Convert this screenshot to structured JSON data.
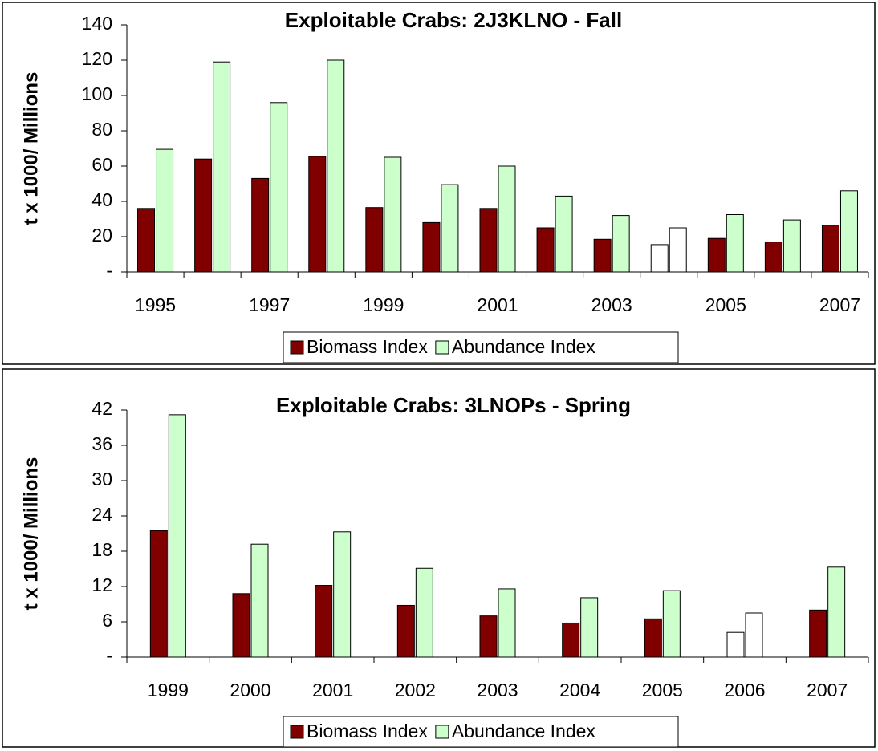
{
  "chart_data": [
    {
      "type": "bar",
      "title": "Exploitable Crabs:  2J3KLNO - Fall",
      "y_label": "t x 1000/ Millions",
      "categories": [
        "1995",
        null,
        "1997",
        null,
        "1999",
        null,
        "2001",
        null,
        "2003",
        null,
        "2005",
        null,
        "2007"
      ],
      "series": [
        {
          "name": "Biomass Index",
          "color": "#800000",
          "bar_colors": [
            "#800000",
            "#800000",
            "#800000",
            "#800000",
            "#800000",
            "#800000",
            "#800000",
            "#800000",
            "#800000",
            "#ffffff",
            "#800000",
            "#800000",
            "#800000"
          ],
          "values": [
            36,
            64,
            53,
            65.5,
            36.5,
            28,
            36,
            25,
            18.5,
            15.5,
            19,
            17,
            26.5
          ]
        },
        {
          "name": "Abundance Index",
          "color": "#ccffcc",
          "bar_colors": [
            "#ccffcc",
            "#ccffcc",
            "#ccffcc",
            "#ccffcc",
            "#ccffcc",
            "#ccffcc",
            "#ccffcc",
            "#ccffcc",
            "#ccffcc",
            "#ffffff",
            "#ccffcc",
            "#ccffcc",
            "#ccffcc"
          ],
          "values": [
            69.5,
            119,
            96,
            120,
            65,
            49.5,
            60,
            43,
            32,
            25,
            32.5,
            29.5,
            46
          ]
        }
      ],
      "ylim": [
        0,
        140
      ],
      "yticks": [
        {
          "value": 0,
          "label": "-"
        },
        20,
        40,
        60,
        80,
        100,
        120,
        140
      ],
      "grid": false,
      "legend": "bottom"
    },
    {
      "type": "bar",
      "title": "Exploitable Crabs:  3LNOPs - Spring",
      "y_label": "t x 1000/ Millions",
      "categories": [
        "1999",
        "2000",
        "2001",
        "2002",
        "2003",
        "2004",
        "2005",
        "2006",
        "2007"
      ],
      "series": [
        {
          "name": "Biomass Index",
          "color": "#800000",
          "bar_colors": [
            "#800000",
            "#800000",
            "#800000",
            "#800000",
            "#800000",
            "#800000",
            "#800000",
            "#ffffff",
            "#800000"
          ],
          "values": [
            21.5,
            10.8,
            12.2,
            8.8,
            7,
            5.8,
            6.5,
            4.2,
            8
          ]
        },
        {
          "name": "Abundance Index",
          "color": "#ccffcc",
          "bar_colors": [
            "#ccffcc",
            "#ccffcc",
            "#ccffcc",
            "#ccffcc",
            "#ccffcc",
            "#ccffcc",
            "#ccffcc",
            "#ffffff",
            "#ccffcc"
          ],
          "values": [
            41.2,
            19.2,
            21.3,
            15.1,
            11.6,
            10.1,
            11.3,
            7.5,
            15.3
          ]
        }
      ],
      "ylim": [
        0,
        42
      ],
      "yticks": [
        {
          "value": 0,
          "label": "-"
        },
        6,
        12,
        18,
        24,
        30,
        36,
        42
      ],
      "grid": false,
      "legend": "bottom"
    }
  ]
}
